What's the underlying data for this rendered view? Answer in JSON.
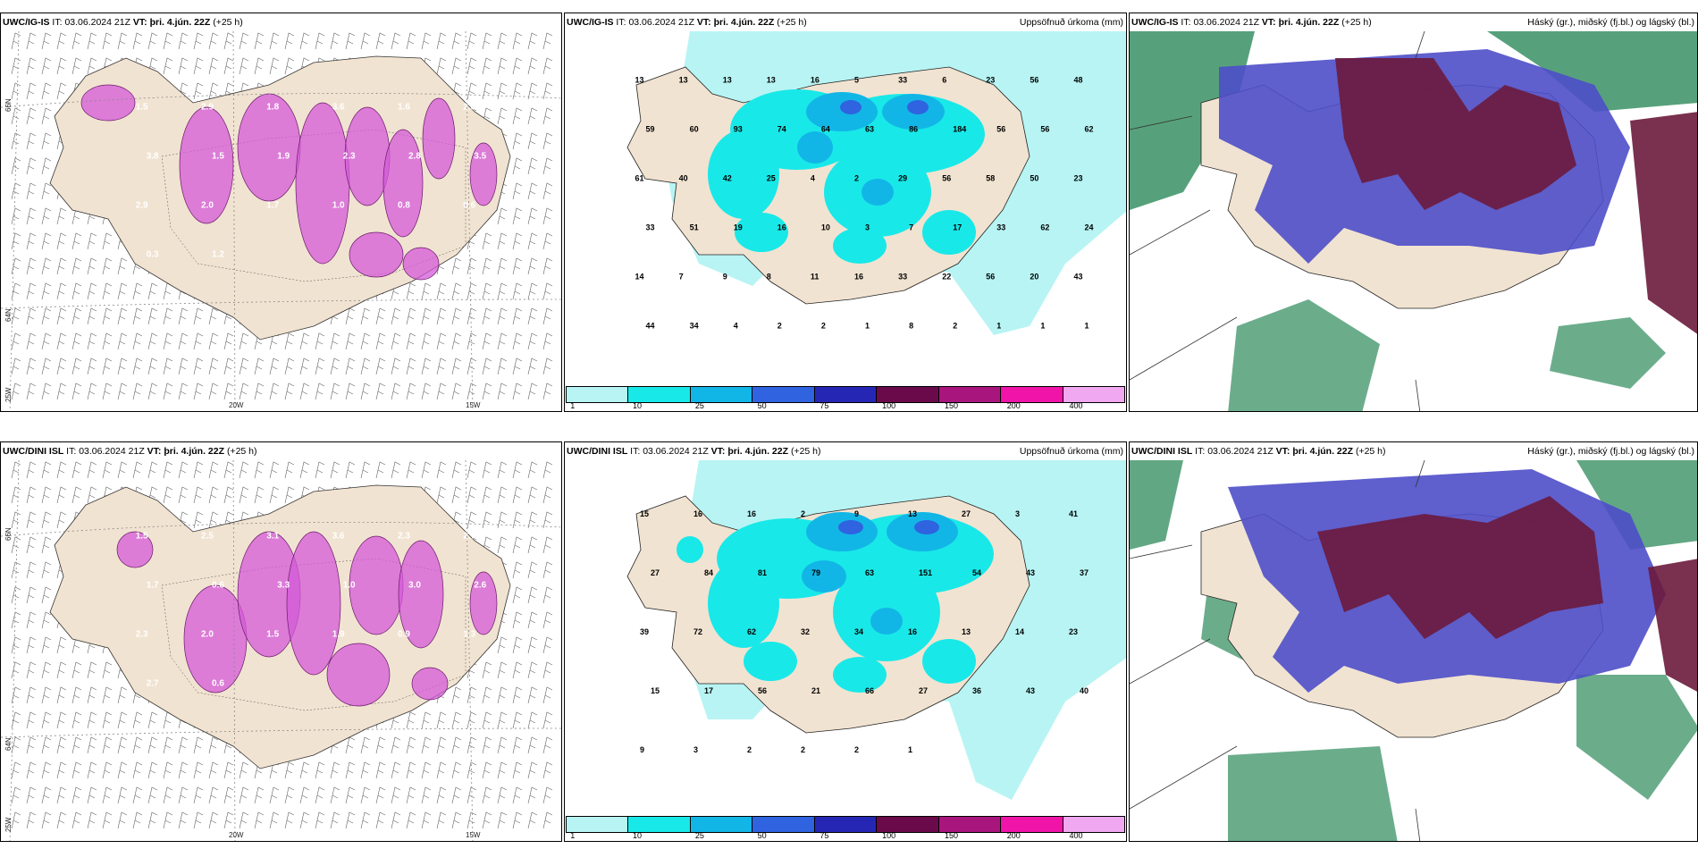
{
  "panels": {
    "p1": {
      "model": "UWC/IG-IS",
      "it_label": "IT:",
      "it_value": "03.06.2024 21Z",
      "vt_label": "VT:",
      "vt_value": "þri. 4.jún. 22Z",
      "lead": "(+25 h)"
    },
    "p2": {
      "model": "UWC/IG-IS",
      "it_label": "IT:",
      "it_value": "03.06.2024 21Z",
      "vt_label": "VT:",
      "vt_value": "þri. 4.jún. 22Z",
      "lead": "(+25 h)",
      "right_title": "Uppsöfnuð úrkoma (mm)"
    },
    "p3": {
      "model": "UWC/IG-IS",
      "it_label": "IT:",
      "it_value": "03.06.2024 21Z",
      "vt_label": "VT:",
      "vt_value": "þri. 4.jún. 22Z",
      "lead": "(+25 h)",
      "right_title": "Háský (gr.), miðský (fj.bl.) og lágský (bl.)"
    },
    "p4": {
      "model": "UWC/DINI ISL",
      "it_label": "IT:",
      "it_value": "03.06.2024 21Z",
      "vt_label": "VT:",
      "vt_value": "þri. 4.jún. 22Z",
      "lead": "(+25 h)"
    },
    "p5": {
      "model": "UWC/DINI ISL",
      "it_label": "IT:",
      "it_value": "03.06.2024 21Z",
      "vt_label": "VT:",
      "vt_value": "þri. 4.jún. 22Z",
      "lead": "(+25 h)",
      "right_title": "Uppsöfnuð úrkoma (mm)"
    },
    "p6": {
      "model": "UWC/DINI ISL",
      "it_label": "IT:",
      "it_value": "03.06.2024 21Z",
      "vt_label": "VT:",
      "vt_value": "þri. 4.jún. 22Z",
      "lead": "(+25 h)",
      "right_title": "Háský (gr.), miðský (fj.bl.) og lágský (bl.)"
    }
  },
  "coords": {
    "lat66": "66N",
    "lat64": "64N",
    "lon25": "25W",
    "lon20": "20W",
    "lon15": "15W"
  },
  "legend": {
    "colors": [
      "#b8f4f4",
      "#19e8e8",
      "#12b6e6",
      "#2f63e0",
      "#2626b4",
      "#6b0a4a",
      "#a8157c",
      "#f014a8",
      "#f0a8f0"
    ],
    "ticks": [
      "1",
      "10",
      "25",
      "50",
      "75",
      "100",
      "150",
      "200",
      "400"
    ]
  },
  "colors": {
    "land": "#f1e3d1",
    "precip_light": "#b8f4f4",
    "precip_mid": "#19e8e8",
    "precip_dark": "#12b6e6",
    "high_cloud": "#2c8a5a",
    "mid_cloud": "#6b1a3c",
    "low_cloud": "#4e4ec9",
    "wind_lift": "#d45ad8"
  },
  "precip_top": [
    "13",
    "13",
    "13",
    "13",
    "16",
    "5",
    "33",
    "6",
    "23",
    "56",
    "48",
    "59",
    "60",
    "93",
    "74",
    "64",
    "63",
    "86",
    "184",
    "56",
    "56",
    "62",
    "61",
    "40",
    "42",
    "25",
    "4",
    "2",
    "29",
    "56",
    "58",
    "50",
    "23",
    "33",
    "51",
    "19",
    "16",
    "10",
    "3",
    "7",
    "17",
    "33",
    "62",
    "24",
    "14",
    "7",
    "9",
    "8",
    "11",
    "16",
    "33",
    "22",
    "56",
    "20",
    "43",
    "44",
    "34",
    "4",
    "2",
    "2",
    "1",
    "8",
    "2",
    "1",
    "1",
    "1"
  ],
  "precip_bottom": [
    "15",
    "16",
    "16",
    "2",
    "9",
    "13",
    "27",
    "3",
    "41",
    "27",
    "84",
    "81",
    "79",
    "63",
    "151",
    "54",
    "43",
    "37",
    "39",
    "72",
    "62",
    "32",
    "34",
    "16",
    "13",
    "14",
    "23",
    "15",
    "17",
    "56",
    "21",
    "66",
    "27",
    "36",
    "43",
    "40",
    "9",
    "3",
    "2",
    "2",
    "2",
    "1"
  ],
  "wind_vals_top": [
    "1.5",
    "2.9",
    "1.8",
    "3.6",
    "1.6",
    "2.5",
    "3.8",
    "1.5",
    "1.9",
    "2.3",
    "2.8",
    "3.5",
    "2.9",
    "2.0",
    "1.7",
    "1.0",
    "0.8",
    "0.6",
    "0.3",
    "1.2"
  ],
  "wind_vals_bottom": [
    "1.5",
    "2.5",
    "3.1",
    "3.6",
    "2.3",
    "2.7",
    "1.7",
    "0.6",
    "3.3",
    "1.0",
    "3.0",
    "2.6",
    "2.3",
    "2.0",
    "1.5",
    "1.9",
    "0.9",
    "1.3",
    "2.7",
    "0.6"
  ]
}
